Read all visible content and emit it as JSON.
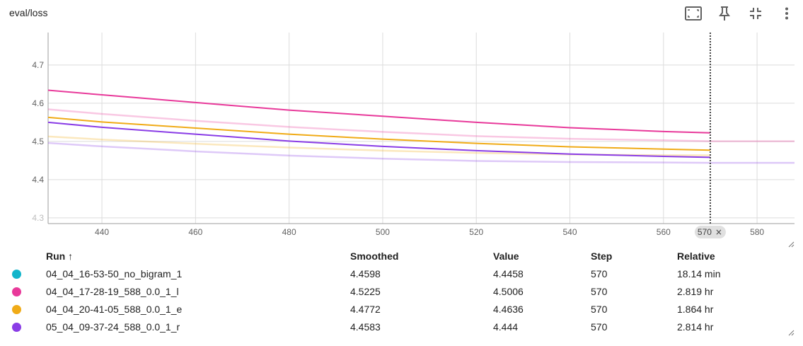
{
  "header": {
    "title": "eval/loss"
  },
  "toolbar": {
    "icons": [
      "fit-screen-icon",
      "pin-icon",
      "collapse-icon",
      "more-vert-icon"
    ]
  },
  "chart_data": {
    "type": "line",
    "xlabel": "",
    "ylabel": "",
    "xlim": [
      428.5,
      588
    ],
    "ylim": [
      4.285,
      4.785
    ],
    "xticks": [
      440,
      460,
      480,
      500,
      520,
      540,
      560,
      580
    ],
    "yticks": [
      4.3,
      4.4,
      4.5,
      4.6,
      4.7
    ],
    "grid": true,
    "cursor": {
      "step": 570,
      "label": "570"
    },
    "series": [
      {
        "name": "04_04_17-28-19_588_0.0_1_l",
        "color": "#e8399a",
        "smoothed": [
          [
            428.5,
            4.634
          ],
          [
            440,
            4.622
          ],
          [
            460,
            4.602
          ],
          [
            480,
            4.582
          ],
          [
            500,
            4.566
          ],
          [
            520,
            4.55
          ],
          [
            540,
            4.536
          ],
          [
            560,
            4.526
          ],
          [
            570,
            4.5225
          ]
        ],
        "raw": [
          [
            428.5,
            4.584
          ],
          [
            440,
            4.572
          ],
          [
            460,
            4.554
          ],
          [
            480,
            4.538
          ],
          [
            500,
            4.525
          ],
          [
            520,
            4.514
          ],
          [
            540,
            4.507
          ],
          [
            560,
            4.503
          ],
          [
            570,
            4.5006
          ],
          [
            588,
            4.5006
          ]
        ]
      },
      {
        "name": "04_04_20-41-05_588_0.0_1_e",
        "color": "#f0ab17",
        "smoothed": [
          [
            428.5,
            4.563
          ],
          [
            440,
            4.551
          ],
          [
            460,
            4.535
          ],
          [
            480,
            4.519
          ],
          [
            500,
            4.506
          ],
          [
            520,
            4.495
          ],
          [
            540,
            4.486
          ],
          [
            560,
            4.48
          ],
          [
            570,
            4.4772
          ]
        ],
        "raw": [
          [
            428.5,
            4.513
          ],
          [
            440,
            4.505
          ],
          [
            460,
            4.494
          ],
          [
            480,
            4.484
          ],
          [
            500,
            4.476
          ],
          [
            520,
            4.47
          ],
          [
            540,
            4.466
          ],
          [
            560,
            4.464
          ],
          [
            570,
            4.4636
          ]
        ]
      },
      {
        "name": "05_04_09-37-24_588_0.0_1_r",
        "color": "#8a3de6",
        "smoothed": [
          [
            428.5,
            4.55
          ],
          [
            440,
            4.537
          ],
          [
            460,
            4.519
          ],
          [
            480,
            4.501
          ],
          [
            500,
            4.487
          ],
          [
            520,
            4.476
          ],
          [
            540,
            4.467
          ],
          [
            560,
            4.461
          ],
          [
            570,
            4.4583
          ]
        ],
        "raw": [
          [
            428.5,
            4.496
          ],
          [
            440,
            4.487
          ],
          [
            460,
            4.474
          ],
          [
            480,
            4.463
          ],
          [
            500,
            4.455
          ],
          [
            520,
            4.449
          ],
          [
            540,
            4.446
          ],
          [
            560,
            4.445
          ],
          [
            570,
            4.444
          ],
          [
            588,
            4.444
          ]
        ]
      }
    ]
  },
  "table": {
    "headers": {
      "run": "Run ↑",
      "smoothed": "Smoothed",
      "value": "Value",
      "step": "Step",
      "relative": "Relative"
    },
    "rows": [
      {
        "color": "#12b5cb",
        "run": "04_04_16-53-50_no_bigram_1",
        "smoothed": "4.4598",
        "value": "4.4458",
        "step": "570",
        "relative": "18.14 min"
      },
      {
        "color": "#e8399a",
        "run": "04_04_17-28-19_588_0.0_1_l",
        "smoothed": "4.5225",
        "value": "4.5006",
        "step": "570",
        "relative": "2.819 hr"
      },
      {
        "color": "#f0ab17",
        "run": "04_04_20-41-05_588_0.0_1_e",
        "smoothed": "4.4772",
        "value": "4.4636",
        "step": "570",
        "relative": "1.864 hr"
      },
      {
        "color": "#8a3de6",
        "run": "05_04_09-37-24_588_0.0_1_r",
        "smoothed": "4.4583",
        "value": "4.444",
        "step": "570",
        "relative": "2.814 hr"
      }
    ]
  }
}
